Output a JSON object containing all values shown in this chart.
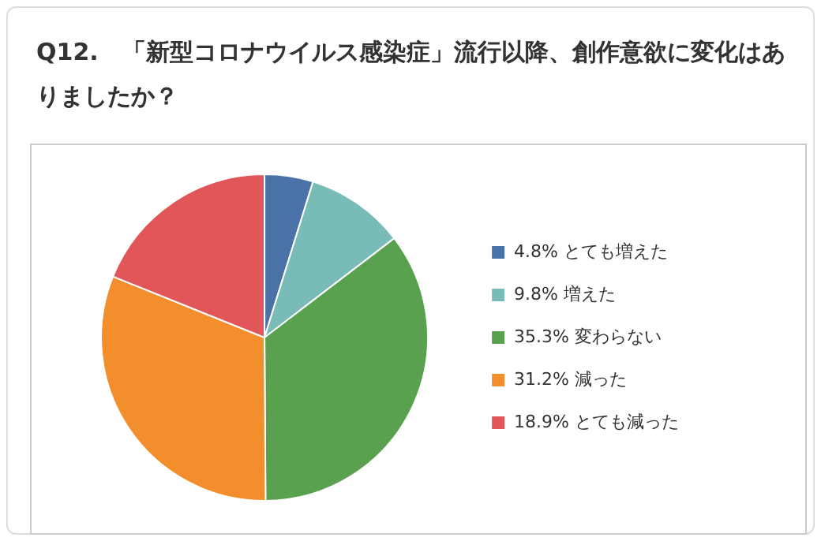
{
  "chart_data": {
    "type": "pie",
    "title": "Q12.　「新型コロナウイルス感染症」流行以降、創作意欲に変化はありましたか？",
    "categories": [
      "とても増えた",
      "増えた",
      "変わらない",
      "減った",
      "とても減った"
    ],
    "values": [
      4.8,
      9.8,
      35.3,
      31.2,
      18.9
    ],
    "value_labels": [
      "4.8%",
      "9.8%",
      "35.3%",
      "31.2%",
      "18.9%"
    ],
    "colors": [
      "#4a72a6",
      "#78bbb7",
      "#59a14f",
      "#f28e2b",
      "#e15759"
    ],
    "legend": "right"
  }
}
